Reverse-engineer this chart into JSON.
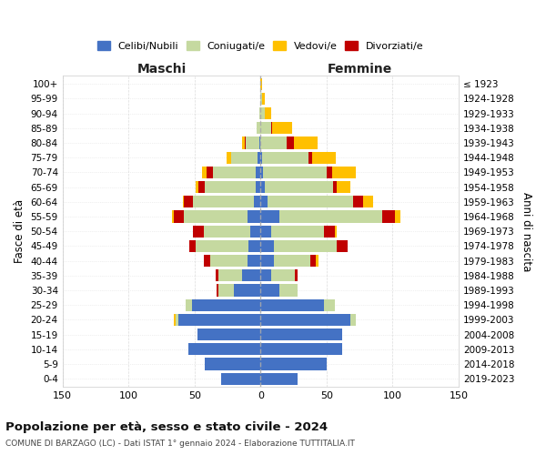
{
  "age_groups": [
    "0-4",
    "5-9",
    "10-14",
    "15-19",
    "20-24",
    "25-29",
    "30-34",
    "35-39",
    "40-44",
    "45-49",
    "50-54",
    "55-59",
    "60-64",
    "65-69",
    "70-74",
    "75-79",
    "80-84",
    "85-89",
    "90-94",
    "95-99",
    "100+"
  ],
  "birth_years": [
    "2019-2023",
    "2014-2018",
    "2009-2013",
    "2004-2008",
    "1999-2003",
    "1994-1998",
    "1989-1993",
    "1984-1988",
    "1979-1983",
    "1974-1978",
    "1969-1973",
    "1964-1968",
    "1959-1963",
    "1954-1958",
    "1949-1953",
    "1944-1948",
    "1939-1943",
    "1934-1938",
    "1929-1933",
    "1924-1928",
    "≤ 1923"
  ],
  "colors": {
    "celibe": "#4472c4",
    "coniugato": "#c5d9a0",
    "vedovo": "#ffc000",
    "divorziato": "#c00000"
  },
  "maschi": {
    "celibe": [
      30,
      42,
      55,
      48,
      62,
      52,
      20,
      14,
      10,
      9,
      8,
      10,
      5,
      4,
      4,
      2,
      1,
      0,
      0,
      0,
      0
    ],
    "coniugato": [
      0,
      0,
      0,
      0,
      2,
      5,
      12,
      18,
      28,
      40,
      35,
      48,
      46,
      38,
      32,
      20,
      10,
      3,
      1,
      0,
      0
    ],
    "vedovo": [
      0,
      0,
      0,
      0,
      2,
      0,
      0,
      0,
      0,
      0,
      0,
      1,
      1,
      2,
      3,
      4,
      2,
      0,
      0,
      0,
      0
    ],
    "divorziato": [
      0,
      0,
      0,
      0,
      0,
      0,
      1,
      2,
      5,
      5,
      8,
      8,
      7,
      5,
      5,
      0,
      1,
      0,
      0,
      0,
      0
    ]
  },
  "femmine": {
    "celibe": [
      28,
      50,
      62,
      62,
      68,
      48,
      14,
      8,
      10,
      10,
      8,
      14,
      5,
      3,
      2,
      1,
      0,
      0,
      0,
      0,
      0
    ],
    "coniugato": [
      0,
      0,
      0,
      0,
      4,
      8,
      14,
      18,
      28,
      48,
      40,
      78,
      65,
      52,
      48,
      35,
      20,
      8,
      3,
      1,
      0
    ],
    "vedovo": [
      0,
      0,
      0,
      0,
      0,
      0,
      0,
      0,
      2,
      0,
      2,
      4,
      7,
      10,
      18,
      18,
      18,
      15,
      5,
      2,
      1
    ],
    "divorziato": [
      0,
      0,
      0,
      0,
      0,
      0,
      0,
      2,
      4,
      8,
      8,
      10,
      8,
      3,
      4,
      3,
      5,
      1,
      0,
      0,
      0
    ]
  },
  "xlim": 150,
  "title": "Popolazione per età, sesso e stato civile - 2024",
  "subtitle": "COMUNE DI BARZAGO (LC) - Dati ISTAT 1° gennaio 2024 - Elaborazione TUTTITALIA.IT",
  "xlabel_left": "Maschi",
  "xlabel_right": "Femmine",
  "ylabel_left": "Fasce di età",
  "ylabel_right": "Anni di nascita",
  "legend_labels": [
    "Celibi/Nubili",
    "Coniugati/e",
    "Vedovi/e",
    "Divorziati/e"
  ],
  "background_color": "#ffffff",
  "grid_color": "#cccccc"
}
